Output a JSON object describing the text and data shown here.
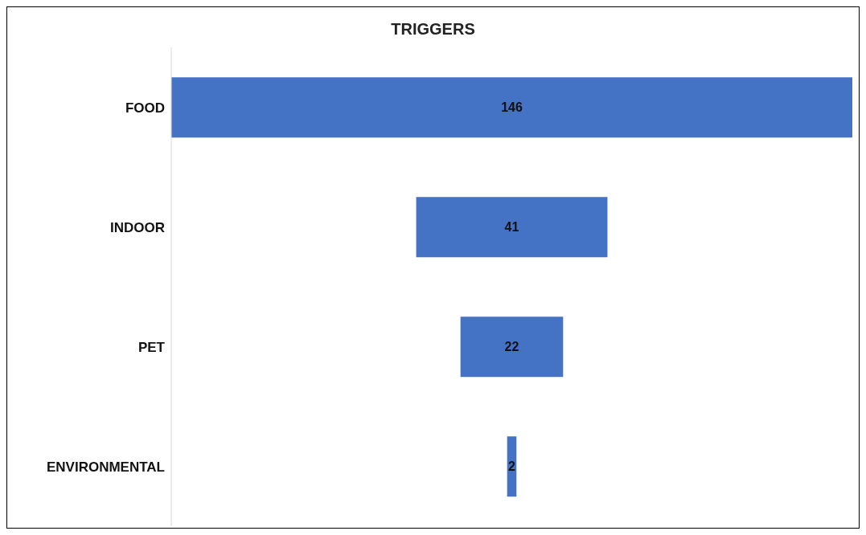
{
  "chart_data": {
    "type": "other",
    "title": "TRIGGERS",
    "categories": [
      "FOOD",
      "INDOOR",
      "PET",
      "ENVIRONMENTAL"
    ],
    "values": [
      146,
      41,
      22,
      2
    ],
    "color": "#4472c4",
    "data_labels": true
  }
}
